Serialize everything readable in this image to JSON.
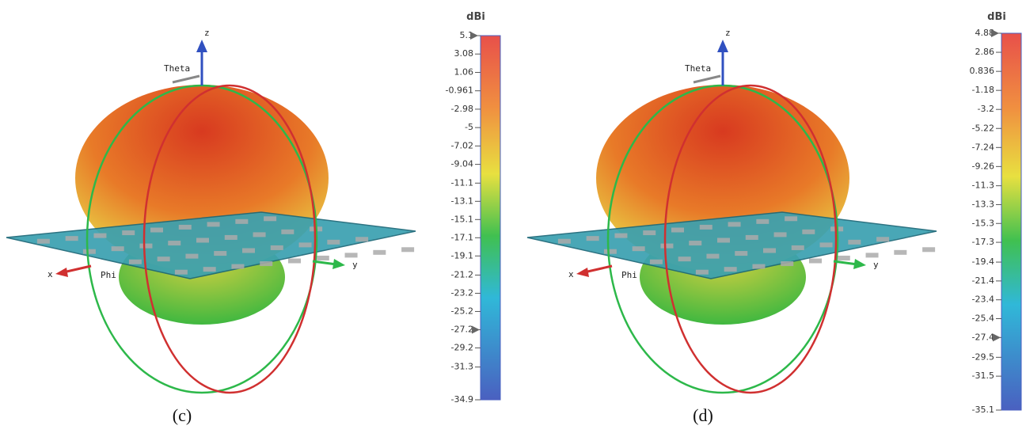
{
  "panels": [
    {
      "caption": "(c)",
      "unit": "dBi",
      "axes": {
        "z": "z",
        "theta": "Theta",
        "x": "x",
        "phi": "Phi",
        "y": "y"
      },
      "colorbar": {
        "ticks": [
          5.1,
          3.08,
          1.06,
          -0.961,
          -2.98,
          -5,
          -7.02,
          -9.04,
          -11.1,
          -13.1,
          -15.1,
          -17.1,
          -19.1,
          -21.2,
          -23.2,
          -25.2,
          -27.2,
          -29.2,
          -31.3,
          -34.9
        ],
        "marker": -27.2
      }
    },
    {
      "caption": "(d)",
      "unit": "dBi",
      "axes": {
        "z": "z",
        "theta": "Theta",
        "x": "x",
        "phi": "Phi",
        "y": "y"
      },
      "colorbar": {
        "ticks": [
          4.88,
          2.86,
          0.836,
          -1.18,
          -3.2,
          -5.22,
          -7.24,
          -9.26,
          -11.3,
          -13.3,
          -15.3,
          -17.3,
          -19.4,
          -21.4,
          -23.4,
          -25.4,
          -27.4,
          -29.5,
          -31.5,
          -35.1
        ],
        "marker": -27.4
      }
    }
  ]
}
